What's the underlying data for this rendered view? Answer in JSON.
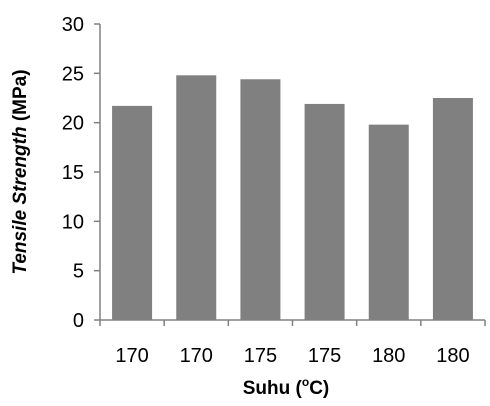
{
  "chart_data": {
    "type": "bar",
    "categories": [
      "170",
      "170",
      "175",
      "175",
      "180",
      "180"
    ],
    "values": [
      21.7,
      24.8,
      24.4,
      21.9,
      19.8,
      22.5
    ],
    "ylim": [
      0,
      30
    ],
    "yticks": [
      0,
      5,
      10,
      15,
      20,
      25,
      30
    ],
    "ylabel": {
      "italic": "Tensile Strength",
      "normal": " (MPa)"
    },
    "xlabel": {
      "main": "Suhu (",
      "sup": "o",
      "end": "C)"
    },
    "bar_color": "#808080",
    "axis_color": "#808080",
    "grid": false,
    "legend": "none"
  }
}
